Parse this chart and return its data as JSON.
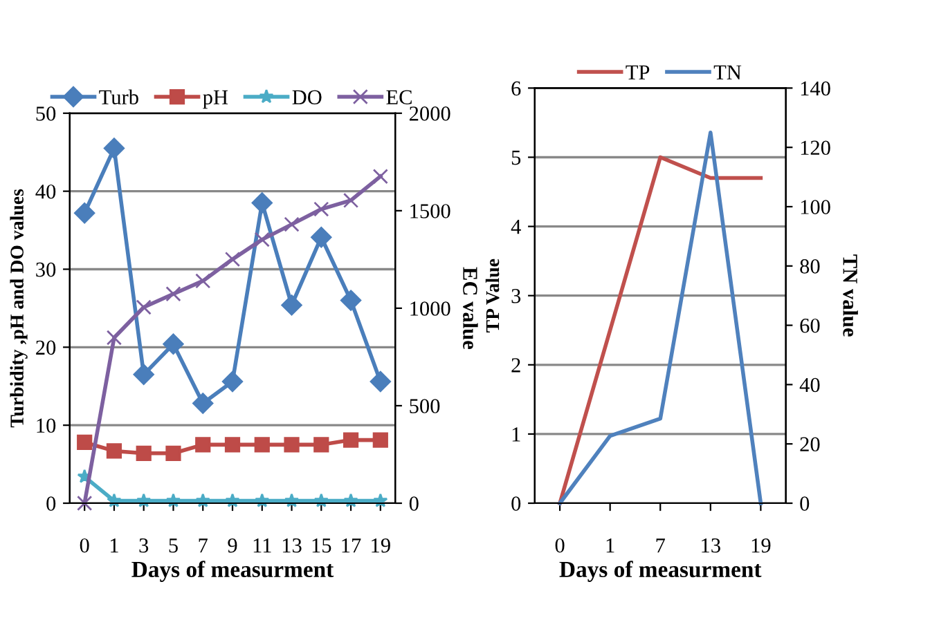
{
  "chart_data": [
    {
      "type": "line",
      "categories": [
        "0",
        "1",
        "3",
        "5",
        "7",
        "9",
        "11",
        "13",
        "15",
        "17",
        "19"
      ],
      "xlabel": "Days of measurment",
      "ylabel": "Turbidity ,pH and DO values",
      "y2label": "EC value",
      "ylim": [
        0,
        50
      ],
      "yticks": [
        0,
        10,
        20,
        30,
        40,
        50
      ],
      "y2lim": [
        0,
        2000
      ],
      "y2ticks": [
        0,
        500,
        1000,
        1500,
        2000
      ],
      "grid": "y",
      "legend": "top",
      "line_style": "solid",
      "series": [
        {
          "name": "Turb",
          "color": "#4a7ebb",
          "marker": "diamond",
          "values": [
            37.2,
            45.5,
            16.5,
            20.4,
            12.8,
            15.6,
            38.5,
            25.4,
            34.1,
            26,
            15.6
          ]
        },
        {
          "name": "pH",
          "color": "#be4b48",
          "marker": "square",
          "values": [
            7.8,
            6.7,
            6.4,
            6.4,
            7.5,
            7.5,
            7.5,
            7.5,
            7.5,
            8.1,
            8.1
          ]
        },
        {
          "name": "DO",
          "color": "#4bacc6",
          "marker": "star",
          "values": [
            3.4,
            0.3,
            0.3,
            0.3,
            0.3,
            0.3,
            0.3,
            0.3,
            0.3,
            0.3,
            0.3
          ]
        },
        {
          "name": "EC",
          "color": "#7d60a0",
          "marker": "cross",
          "axis": "y2",
          "values": [
            0,
            849,
            1005,
            1073,
            1140,
            1251,
            1352,
            1430,
            1508,
            1553,
            1676
          ]
        }
      ]
    },
    {
      "type": "line",
      "categories": [
        "0",
        "1",
        "7",
        "13",
        "19"
      ],
      "xlabel": "Days of measurment",
      "ylabel": "TP Value",
      "y2label": "TN value",
      "ylim": [
        0,
        6
      ],
      "yticks": [
        0,
        1,
        2,
        3,
        4,
        5,
        6
      ],
      "y2lim": [
        0,
        140
      ],
      "y2ticks": [
        0,
        20,
        40,
        60,
        80,
        100,
        120,
        140
      ],
      "grid": "y",
      "legend": "top",
      "line_style": "solid",
      "series": [
        {
          "name": "TP",
          "color": "#c0504d",
          "marker": "none",
          "values": [
            0,
            2.5,
            5,
            4.7,
            4.7
          ]
        },
        {
          "name": "TN",
          "color": "#4f81bd",
          "marker": "none",
          "axis": "y2",
          "values": [
            0,
            22.7,
            28.5,
            125,
            0
          ]
        }
      ]
    }
  ]
}
